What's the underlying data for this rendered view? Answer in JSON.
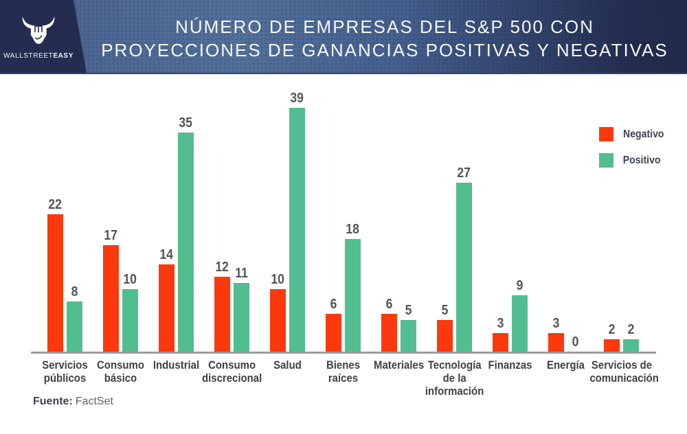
{
  "header": {
    "logo": {
      "brand_first": "WALLSTREET",
      "brand_second": "EASY"
    },
    "title_line1": "NÚMERO DE EMPRESAS DEL S&P 500 CON",
    "title_line2": "PROYECCIONES DE GANANCIAS POSITIVAS Y NEGATIVAS"
  },
  "legend": {
    "negative_label": "Negativo",
    "positive_label": "Positivo"
  },
  "footer": {
    "source_label": "Fuente:",
    "source_value": "FactSet"
  },
  "colors": {
    "negative": "#fb390d",
    "positive": "#52bd90",
    "header_dark": "#242d50",
    "header_blue": "#527099",
    "axis": "#9b9b9b",
    "value_label": "#515458",
    "category_label": "#414141"
  },
  "chart_data": {
    "type": "bar",
    "title": "NÚMERO DE EMPRESAS DEL S&P 500 CON PROYECCIONES DE GANANCIAS POSITIVAS Y NEGATIVAS",
    "categories": [
      "Servicios públicos",
      "Consumo básico",
      "Industrial",
      "Consumo discrecional",
      "Salud",
      "Bienes raíces",
      "Materiales",
      "Tecnología de la información",
      "Finanzas",
      "Energía",
      "Servicios de comunicación"
    ],
    "series": [
      {
        "name": "Negativo",
        "color_key": "negative",
        "values": [
          22,
          17,
          14,
          12,
          10,
          6,
          6,
          5,
          3,
          3,
          2
        ]
      },
      {
        "name": "Positivo",
        "color_key": "positive",
        "values": [
          8,
          10,
          35,
          11,
          39,
          18,
          5,
          27,
          9,
          0,
          2
        ]
      }
    ],
    "xlabel": "",
    "ylabel": "",
    "ylim": [
      0,
      39
    ],
    "grid": false,
    "value_labels": true,
    "legend_position": "top-right",
    "source": "FactSet"
  }
}
